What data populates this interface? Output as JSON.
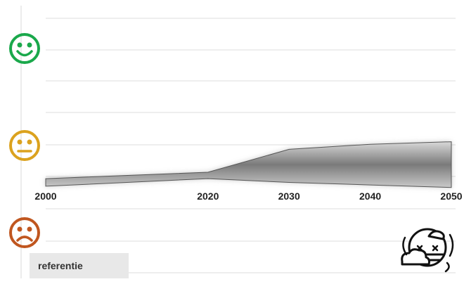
{
  "chart_data": {
    "type": "area",
    "title": "",
    "xlabel": "",
    "ylabel": "",
    "x": [
      2000,
      2020,
      2030,
      2040,
      2050
    ],
    "series": [
      {
        "name": "referentie",
        "upper": [
          -0.26,
          -0.21,
          -0.03,
          0.01,
          0.03
        ],
        "lower": [
          -0.32,
          -0.26,
          -0.29,
          -0.31,
          -0.33
        ]
      }
    ],
    "xlim": [
      2000,
      2050
    ],
    "ylim": [
      -1,
      1
    ],
    "grid": true,
    "y_scale_icons": [
      "happy-face",
      "neutral-face",
      "sad-face"
    ],
    "legend": {
      "label": "referentie",
      "placement": "bottom-left"
    }
  },
  "colors": {
    "happy": "#1aa84b",
    "neutral": "#dba21e",
    "sad": "#c0561f",
    "band": "#9a9a9a",
    "grid": "#d9d9d9"
  },
  "corner_icon": "climate-storm-icon"
}
